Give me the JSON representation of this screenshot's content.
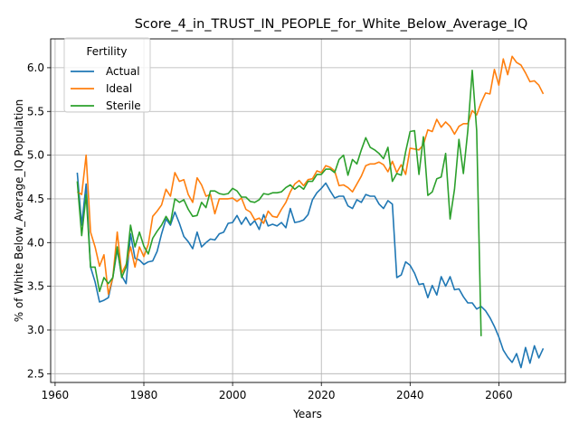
{
  "chart_data": {
    "type": "line",
    "title": "Score_4_in_TRUST_IN_PEOPLE_for_White_Below_Average_IQ",
    "xlabel": "Years",
    "ylabel": "% of White Below_Average_IQ Population",
    "xlim": [
      1959,
      2075
    ],
    "ylim": [
      2.4,
      6.33
    ],
    "xticks": [
      1960,
      1980,
      2000,
      2020,
      2040,
      2060
    ],
    "yticks": [
      2.5,
      3.0,
      3.5,
      4.0,
      4.5,
      5.0,
      5.5,
      6.0
    ],
    "ytick_labels": [
      "2.5",
      "3.0",
      "3.5",
      "4.0",
      "4.5",
      "5.0",
      "5.5",
      "6.0"
    ],
    "grid": true,
    "legend": {
      "title": "Fertility",
      "placement": "top-left"
    },
    "series": [
      {
        "name": "Actual",
        "color": "#1f77b4",
        "x": [
          1965,
          1966,
          1967,
          1968,
          1969,
          1970,
          1971,
          1972,
          1973,
          1974,
          1975,
          1976,
          1977,
          1978,
          1979,
          1980,
          1981,
          1982,
          1983,
          1984,
          1985,
          1986,
          1987,
          1988,
          1989,
          1990,
          1991,
          1992,
          1993,
          1994,
          1995,
          1996,
          1997,
          1998,
          1999,
          2000,
          2001,
          2002,
          2003,
          2004,
          2005,
          2006,
          2007,
          2008,
          2009,
          2010,
          2011,
          2012,
          2013,
          2014,
          2015,
          2016,
          2017,
          2018,
          2019,
          2020,
          2021,
          2022,
          2023,
          2024,
          2025,
          2026,
          2027,
          2028,
          2029,
          2030,
          2031,
          2032,
          2033,
          2034,
          2035,
          2036,
          2037,
          2038,
          2039,
          2040,
          2041,
          2042,
          2043,
          2044,
          2045,
          2046,
          2047,
          2048,
          2049,
          2050,
          2051,
          2052,
          2053,
          2054,
          2055,
          2056,
          2057,
          2058,
          2059,
          2060,
          2061,
          2062,
          2063,
          2064,
          2065,
          2066,
          2067,
          2068,
          2069,
          2070
        ],
        "values": [
          4.8,
          4.2,
          4.67,
          3.72,
          3.55,
          3.32,
          3.34,
          3.37,
          3.6,
          3.92,
          3.62,
          3.53,
          4.1,
          3.82,
          3.8,
          3.75,
          3.78,
          3.79,
          3.9,
          4.1,
          4.27,
          4.2,
          4.35,
          4.22,
          4.07,
          4.01,
          3.93,
          4.12,
          3.95,
          4.0,
          4.04,
          4.03,
          4.1,
          4.12,
          4.22,
          4.23,
          4.31,
          4.21,
          4.29,
          4.2,
          4.25,
          4.15,
          4.32,
          4.19,
          4.21,
          4.19,
          4.23,
          4.17,
          4.39,
          4.23,
          4.24,
          4.26,
          4.32,
          4.49,
          4.57,
          4.62,
          4.68,
          4.59,
          4.51,
          4.53,
          4.53,
          4.42,
          4.39,
          4.49,
          4.46,
          4.55,
          4.53,
          4.53,
          4.44,
          4.39,
          4.48,
          4.44,
          3.6,
          3.63,
          3.78,
          3.74,
          3.65,
          3.52,
          3.53,
          3.37,
          3.51,
          3.4,
          3.61,
          3.5,
          3.61,
          3.46,
          3.47,
          3.38,
          3.31,
          3.31,
          3.24,
          3.27,
          3.22,
          3.14,
          3.04,
          2.92,
          2.77,
          2.69,
          2.63,
          2.73,
          2.57,
          2.8,
          2.62,
          2.82,
          2.68,
          2.79
        ]
      },
      {
        "name": "Ideal",
        "color": "#ff7f0e",
        "x": [
          1965,
          1966,
          1967,
          1968,
          1969,
          1970,
          1971,
          1972,
          1973,
          1974,
          1975,
          1976,
          1977,
          1978,
          1979,
          1980,
          1981,
          1982,
          1983,
          1984,
          1985,
          1986,
          1987,
          1988,
          1989,
          1990,
          1991,
          1992,
          1993,
          1994,
          1995,
          1996,
          1997,
          1998,
          1999,
          2000,
          2001,
          2002,
          2003,
          2004,
          2005,
          2006,
          2007,
          2008,
          2009,
          2010,
          2011,
          2012,
          2013,
          2014,
          2015,
          2016,
          2017,
          2018,
          2019,
          2020,
          2021,
          2022,
          2023,
          2024,
          2025,
          2026,
          2027,
          2028,
          2029,
          2030,
          2031,
          2032,
          2033,
          2034,
          2035,
          2036,
          2037,
          2038,
          2039,
          2040,
          2041,
          2042,
          2043,
          2044,
          2045,
          2046,
          2047,
          2048,
          2049,
          2050,
          2051,
          2052,
          2053,
          2054,
          2055,
          2056,
          2057,
          2058,
          2059,
          2060,
          2061,
          2062,
          2063,
          2064,
          2065,
          2066,
          2067,
          2068,
          2069,
          2070
        ],
        "values": [
          4.58,
          4.55,
          5.0,
          4.12,
          3.95,
          3.73,
          3.86,
          3.41,
          3.6,
          4.12,
          3.65,
          3.75,
          3.95,
          3.72,
          3.95,
          3.84,
          3.98,
          4.3,
          4.36,
          4.43,
          4.61,
          4.53,
          4.8,
          4.7,
          4.72,
          4.55,
          4.46,
          4.74,
          4.66,
          4.53,
          4.55,
          4.33,
          4.5,
          4.5,
          4.5,
          4.51,
          4.47,
          4.51,
          4.38,
          4.35,
          4.26,
          4.28,
          4.22,
          4.36,
          4.3,
          4.29,
          4.38,
          4.46,
          4.58,
          4.67,
          4.71,
          4.65,
          4.72,
          4.73,
          4.82,
          4.8,
          4.88,
          4.86,
          4.82,
          4.65,
          4.66,
          4.63,
          4.58,
          4.67,
          4.76,
          4.88,
          4.9,
          4.9,
          4.92,
          4.89,
          4.81,
          4.93,
          4.8,
          4.89,
          4.78,
          5.08,
          5.07,
          5.06,
          5.12,
          5.29,
          5.27,
          5.41,
          5.32,
          5.38,
          5.33,
          5.24,
          5.33,
          5.36,
          5.36,
          5.51,
          5.46,
          5.6,
          5.71,
          5.7,
          5.98,
          5.8,
          6.1,
          5.92,
          6.13,
          6.06,
          6.03,
          5.94,
          5.84,
          5.85,
          5.8,
          5.7
        ]
      },
      {
        "name": "Sterile",
        "color": "#2ca02c",
        "x": [
          1965,
          1966,
          1967,
          1968,
          1969,
          1970,
          1971,
          1972,
          1973,
          1974,
          1975,
          1976,
          1977,
          1978,
          1979,
          1980,
          1981,
          1982,
          1983,
          1984,
          1985,
          1986,
          1987,
          1988,
          1989,
          1990,
          1991,
          1992,
          1993,
          1994,
          1995,
          1996,
          1997,
          1998,
          1999,
          2000,
          2001,
          2002,
          2003,
          2004,
          2005,
          2006,
          2007,
          2008,
          2009,
          2010,
          2011,
          2012,
          2013,
          2014,
          2015,
          2016,
          2017,
          2018,
          2019,
          2020,
          2021,
          2022,
          2023,
          2024,
          2025,
          2026,
          2027,
          2028,
          2029,
          2030,
          2031,
          2032,
          2033,
          2034,
          2035,
          2036,
          2037,
          2038,
          2039,
          2040,
          2041,
          2042,
          2043,
          2044,
          2045,
          2046,
          2047,
          2048,
          2049,
          2050,
          2051,
          2052,
          2053,
          2054,
          2055,
          2056
        ],
        "values": [
          4.7,
          4.08,
          4.55,
          3.72,
          3.72,
          3.44,
          3.6,
          3.53,
          3.6,
          3.95,
          3.6,
          3.72,
          4.2,
          3.95,
          4.12,
          3.96,
          3.87,
          4.05,
          4.13,
          4.2,
          4.3,
          4.22,
          4.5,
          4.46,
          4.49,
          4.38,
          4.3,
          4.31,
          4.46,
          4.4,
          4.59,
          4.59,
          4.56,
          4.55,
          4.56,
          4.62,
          4.59,
          4.52,
          4.52,
          4.47,
          4.46,
          4.49,
          4.56,
          4.55,
          4.57,
          4.57,
          4.58,
          4.63,
          4.66,
          4.61,
          4.65,
          4.61,
          4.7,
          4.7,
          4.78,
          4.78,
          4.84,
          4.84,
          4.8,
          4.95,
          5.0,
          4.77,
          4.95,
          4.9,
          5.06,
          5.2,
          5.09,
          5.06,
          5.02,
          4.96,
          5.09,
          4.7,
          4.79,
          4.77,
          5.04,
          5.27,
          5.28,
          4.78,
          5.21,
          4.54,
          4.58,
          4.73,
          4.75,
          5.02,
          4.27,
          4.61,
          5.18,
          4.79,
          5.28,
          5.97,
          5.28,
          2.93
        ]
      }
    ]
  }
}
